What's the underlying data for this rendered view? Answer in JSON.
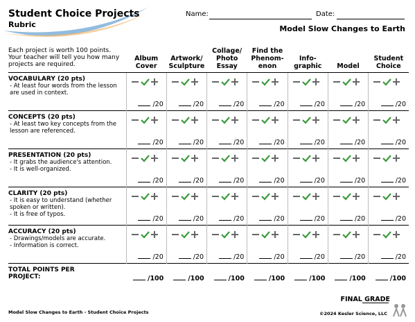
{
  "header": {
    "title": "Student Choice Projects",
    "subtitle": "Rubric",
    "name_label": "Name:",
    "date_label": "Date:",
    "unit": "Model Slow Changes to Earth"
  },
  "table": {
    "intro": "Each project is worth 100 points. Your teacher will tell you how many projects are required.",
    "columns": [
      "Album\nCover",
      "Artwork/\nSculpture",
      "Collage/\nPhoto\nEssay",
      "Find the\nPhenom-\nenon",
      "Info-\ngraphic",
      "Model",
      "Student\nChoice"
    ],
    "rows": [
      {
        "title": "VOCABULARY (20 pts)",
        "items": [
          "- At least four words from the lesson are used in context."
        ],
        "score": "/20"
      },
      {
        "title": "CONCEPTS (20 pts)",
        "items": [
          "- At least two key concepts from the lesson are referenced."
        ],
        "score": "/20"
      },
      {
        "title": "PRESENTATION (20 pts)",
        "items": [
          "- It grabs the audience's attention.",
          "- It is well-organized."
        ],
        "score": "/20"
      },
      {
        "title": "CLARITY (20 pts)",
        "items": [
          "- It is easy to understand (whether spoken or written).",
          "- It is free of typos."
        ],
        "score": "/20"
      },
      {
        "title": "ACCURACY (20 pts)",
        "items": [
          "- Drawings/models are accurate.",
          "- Information is correct."
        ],
        "score": "/20"
      }
    ],
    "total_label": "TOTAL POINTS PER PROJECT:",
    "total_score": "/100"
  },
  "footer": {
    "final_grade": "FINAL GRADE",
    "left": "Model Slow Changes to Earth - Student Choice Projects",
    "right": "©2024 Kesler Science, LLC"
  }
}
